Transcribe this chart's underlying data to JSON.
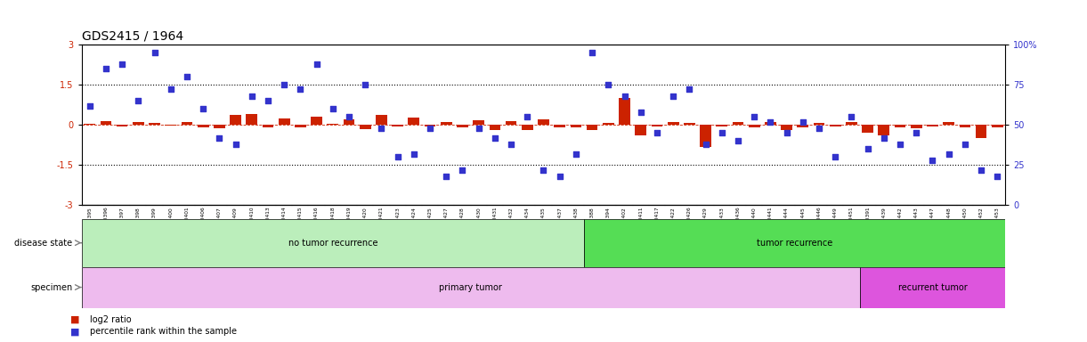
{
  "title": "GDS2415 / 1964",
  "sample_ids": [
    "GSM110395",
    "GSM110396",
    "GSM110397",
    "GSM110398",
    "GSM110399",
    "GSM110400",
    "GSM110401",
    "GSM110406",
    "GSM110407",
    "GSM110409",
    "GSM110410",
    "GSM110413",
    "GSM110414",
    "GSM110415",
    "GSM110416",
    "GSM110418",
    "GSM110419",
    "GSM110420",
    "GSM110421",
    "GSM110423",
    "GSM110424",
    "GSM110425",
    "GSM110427",
    "GSM110428",
    "GSM110430",
    "GSM110431",
    "GSM110432",
    "GSM110434",
    "GSM110435",
    "GSM110437",
    "GSM110438",
    "GSM110388",
    "GSM110394",
    "GSM110402",
    "GSM110411",
    "GSM110417",
    "GSM110422",
    "GSM110426",
    "GSM110429",
    "GSM110433",
    "GSM110436",
    "GSM110440",
    "GSM110441",
    "GSM110444",
    "GSM110445",
    "GSM110446",
    "GSM110449",
    "GSM110451",
    "GSM110391",
    "GSM110439",
    "GSM110442",
    "GSM110443",
    "GSM110447",
    "GSM110448",
    "GSM110450",
    "GSM110452",
    "GSM110453"
  ],
  "log2_ratio": [
    0.05,
    0.15,
    -0.05,
    0.12,
    0.08,
    -0.04,
    0.1,
    -0.08,
    -0.12,
    0.38,
    0.42,
    -0.1,
    0.25,
    -0.08,
    0.32,
    0.05,
    0.2,
    -0.15,
    0.38,
    -0.06,
    0.28,
    -0.05,
    0.12,
    -0.1,
    0.18,
    -0.2,
    0.14,
    -0.18,
    0.22,
    -0.08,
    -0.1,
    -0.18,
    0.08,
    1.0,
    -0.38,
    -0.05,
    0.12,
    0.08,
    -0.82,
    -0.05,
    0.1,
    -0.08,
    0.12,
    -0.18,
    -0.1,
    0.08,
    -0.05,
    0.12,
    -0.28,
    -0.38,
    -0.08,
    -0.12,
    -0.05,
    0.1,
    -0.08,
    -0.48,
    -0.08
  ],
  "percentile_rank": [
    62,
    85,
    88,
    65,
    95,
    72,
    80,
    60,
    42,
    38,
    68,
    65,
    75,
    72,
    88,
    60,
    55,
    75,
    48,
    30,
    32,
    48,
    18,
    22,
    48,
    42,
    38,
    55,
    22,
    18,
    32,
    95,
    75,
    68,
    58,
    45,
    68,
    72,
    38,
    45,
    40,
    55,
    52,
    45,
    52,
    48,
    30,
    55,
    35,
    42,
    38,
    45,
    28,
    32,
    38,
    22,
    18
  ],
  "no_recurrence_count": 31,
  "primary_tumor_count": 48,
  "total_count": 57,
  "bar_color": "#cc2200",
  "dot_color": "#3333cc",
  "no_recurrence_color": "#bbeebb",
  "tumor_recurrence_color": "#55dd55",
  "primary_tumor_color": "#eebbee",
  "recurrent_tumor_color": "#dd55dd",
  "yticks_left": [
    -3,
    -1.5,
    0,
    1.5,
    3
  ],
  "yticks_right_labels": [
    "0",
    "25",
    "50",
    "75",
    "100%"
  ],
  "dotted_lines": [
    -1.5,
    1.5
  ],
  "zero_line_color": "#cc2200",
  "background_color": "#ffffff",
  "tick_label_bg": "#dddddd",
  "title_fontsize": 10,
  "tick_fontsize": 5,
  "label_fontsize": 8
}
